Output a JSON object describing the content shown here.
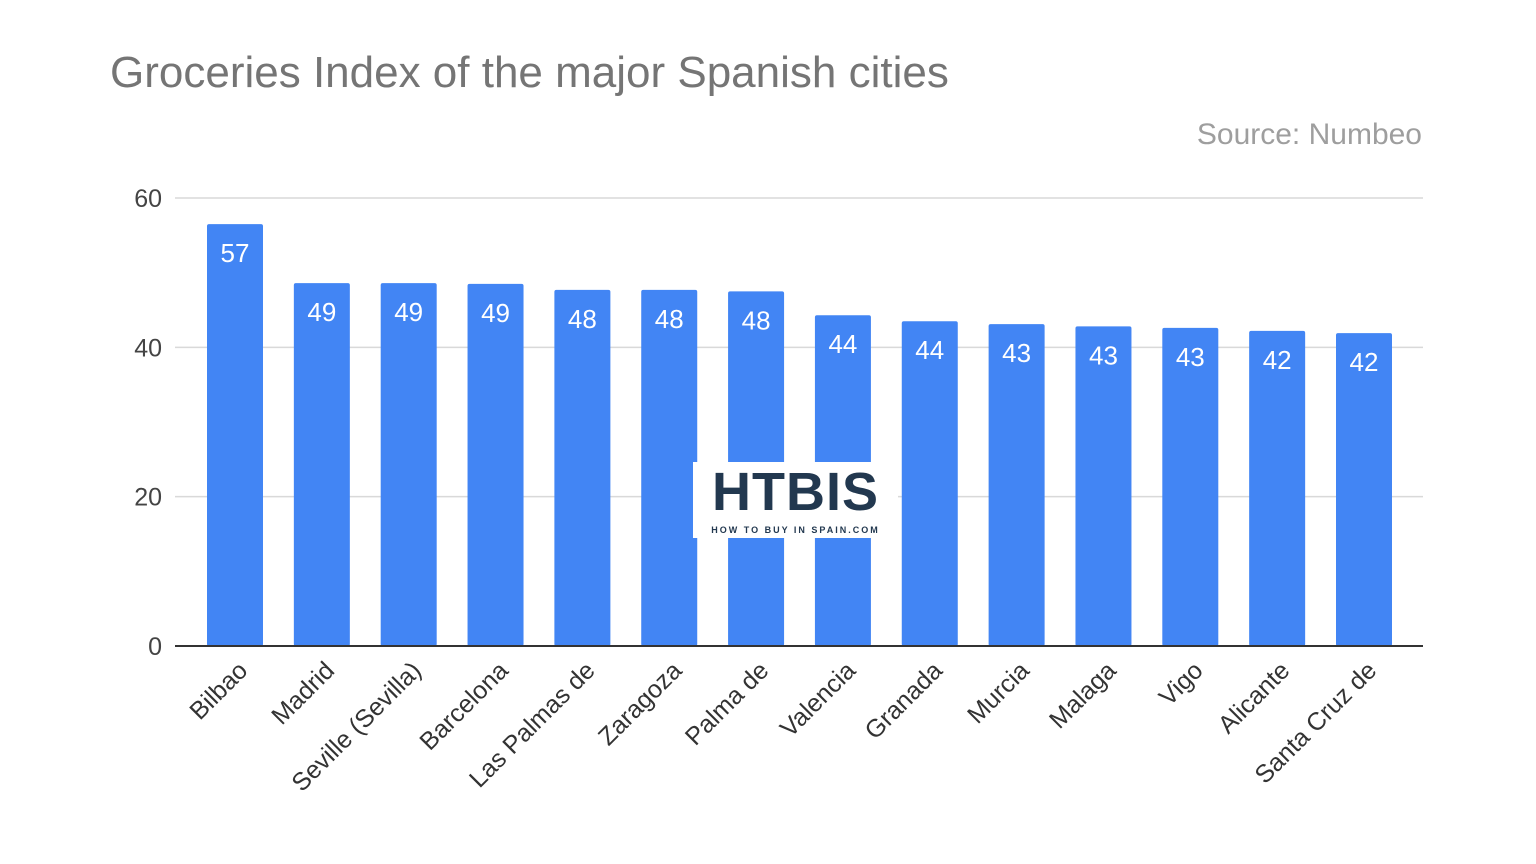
{
  "chart_data": {
    "type": "bar",
    "title": "Groceries Index of the major Spanish cities",
    "subtitle": "Source: Numbeo",
    "categories": [
      "Bilbao",
      "Madrid",
      "Seville (Sevilla)",
      "Barcelona",
      "Las Palmas de",
      "Zaragoza",
      "Palma de",
      "Valencia",
      "Granada",
      "Murcia",
      "Malaga",
      "Vigo",
      "Alicante",
      "Santa Cruz de"
    ],
    "values": [
      56.5,
      48.6,
      48.6,
      48.5,
      47.7,
      47.7,
      47.5,
      44.3,
      43.5,
      43.1,
      42.8,
      42.6,
      42.2,
      41.9
    ],
    "data_labels": [
      "57",
      "49",
      "49",
      "49",
      "48",
      "48",
      "48",
      "44",
      "44",
      "43",
      "43",
      "43",
      "42",
      "42"
    ],
    "ylim": [
      0,
      60
    ],
    "yticks": [
      0,
      20,
      40,
      60
    ],
    "xlabel": "",
    "ylabel": "",
    "grid": true,
    "bar_color": "#4285f4"
  },
  "watermark": {
    "logo_text": "HTBIS",
    "tagline": "HOW TO BUY IN SPAIN.COM"
  }
}
